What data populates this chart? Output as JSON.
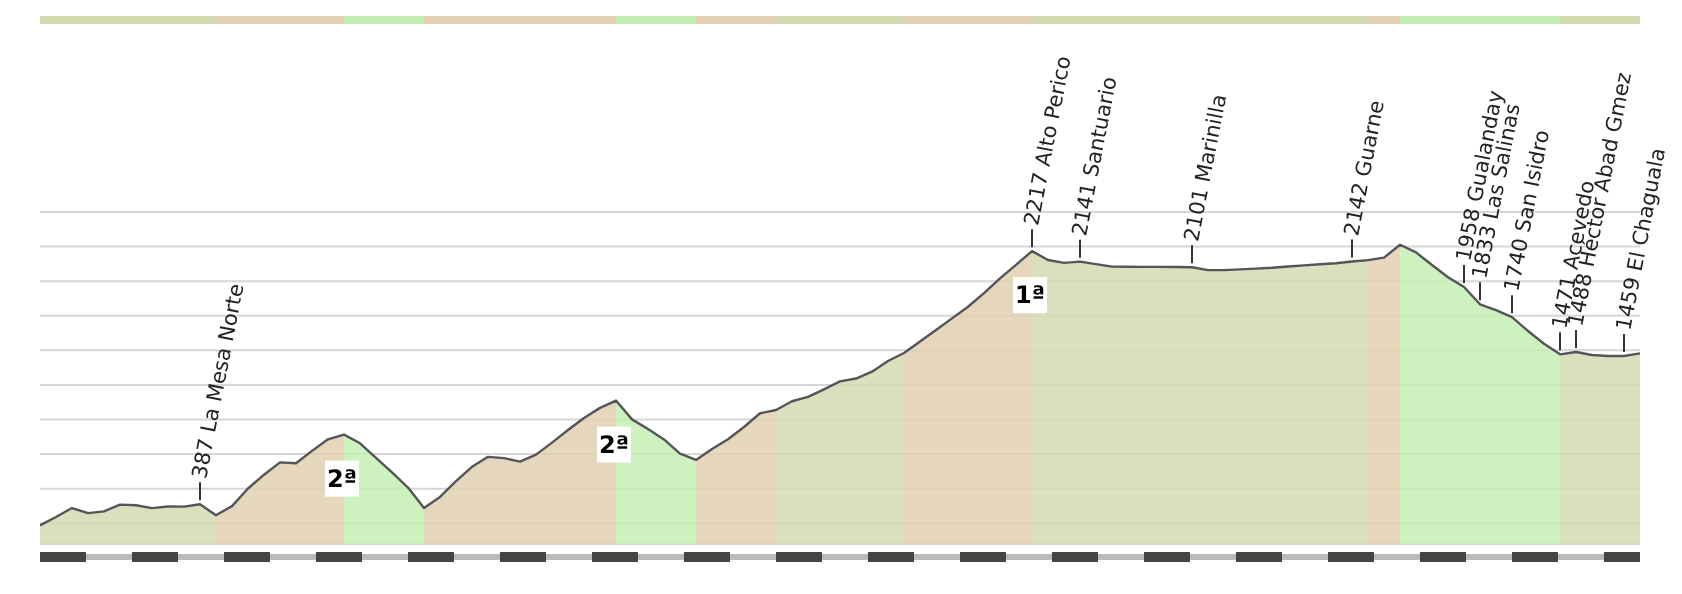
{
  "chart_data": {
    "type": "area",
    "categories": [
      null,
      null,
      null,
      null,
      null,
      null,
      null,
      null,
      null,
      null,
      null,
      null,
      null,
      null,
      null,
      null,
      null,
      null,
      null,
      null,
      null,
      null,
      null,
      null,
      null,
      null,
      null,
      null,
      null,
      null,
      null,
      null,
      null,
      null,
      null,
      null,
      null,
      null,
      null,
      null,
      null,
      null,
      null,
      null,
      null,
      null,
      null,
      null,
      null,
      null,
      null,
      null,
      null,
      null,
      null,
      null,
      null,
      null,
      null,
      null,
      null,
      null,
      null,
      null,
      null,
      null,
      null,
      null,
      null,
      null,
      null,
      null,
      null,
      null,
      null,
      null,
      null,
      null,
      null,
      null,
      null,
      null,
      null,
      null,
      null,
      null,
      null,
      null,
      null,
      null,
      null,
      null,
      null,
      null,
      null,
      null,
      null,
      null,
      null,
      null,
      null
    ],
    "values": [
      235,
      295,
      360,
      323,
      336,
      385,
      380,
      359,
      371,
      370,
      387,
      308,
      374,
      501,
      601,
      690,
      684,
      773,
      857,
      891,
      828,
      722,
      617,
      508,
      361,
      440,
      554,
      658,
      730,
      721,
      696,
      746,
      833,
      924,
      1011,
      1084,
      1137,
      1001,
      932,
      856,
      754,
      708,
      787,
      857,
      946,
      1045,
      1069,
      1132,
      1163,
      1218,
      1276,
      1296,
      1346,
      1423,
      1481,
      1564,
      1647,
      1731,
      1815,
      1914,
      2020,
      2118,
      2217,
      2153,
      2132,
      2141,
      2123,
      2105,
      2104,
      2103,
      2103,
      2102,
      2101,
      2080,
      2080,
      2085,
      2091,
      2097,
      2106,
      2114,
      2122,
      2130,
      2142,
      2152,
      2170,
      2263,
      2208,
      2117,
      2028,
      1958,
      1833,
      1790,
      1740,
      1640,
      1548,
      1471,
      1488,
      1466,
      1459,
      1459,
      1478
    ],
    "value_labels": [
      null,
      null,
      null,
      null,
      null,
      null,
      null,
      null,
      null,
      null,
      "387 La Mesa Norte",
      null,
      null,
      null,
      null,
      null,
      null,
      null,
      null,
      null,
      null,
      null,
      null,
      null,
      null,
      null,
      null,
      null,
      null,
      null,
      null,
      null,
      null,
      null,
      null,
      null,
      null,
      null,
      null,
      null,
      null,
      null,
      null,
      null,
      null,
      null,
      null,
      null,
      null,
      null,
      null,
      null,
      null,
      null,
      null,
      null,
      null,
      null,
      null,
      null,
      null,
      null,
      "2217 Alto Perico",
      null,
      null,
      "2141 Santuario",
      null,
      null,
      null,
      null,
      null,
      null,
      "2101 Marinilla",
      null,
      null,
      null,
      null,
      null,
      null,
      null,
      null,
      null,
      "2142 Guarne",
      null,
      null,
      null,
      null,
      null,
      null,
      "1958 Gualanday",
      "1833 Las Salinas",
      null,
      "1740 San Isidro",
      null,
      null,
      "1471 Acevedo",
      "1488 Héctor Abad Gmez",
      null,
      null,
      "1459 El Chaguala",
      null
    ],
    "color": "#555555",
    "colors": [
      "#d4dbb1",
      "#d4dbb1",
      "#d4dbb1",
      "#d4dbb1",
      "#d4dbb1",
      "#d4dbb1",
      "#d4dbb1",
      "#d4dbb1",
      "#d4dbb1",
      "#d4dbb1",
      "#d4dbb1",
      "#e1d0b1",
      "#e1d0b1",
      "#e1d0b1",
      "#e1d0b1",
      "#e1d0b1",
      "#e1d0b1",
      "#e1d0b1",
      "#e1d0b1",
      "#c4efb4",
      "#c4efb4",
      "#c4efb4",
      "#c4efb4",
      "#c4efb4",
      "#e1d0b1",
      "#e1d0b1",
      "#e1d0b1",
      "#e1d0b1",
      "#e1d0b1",
      "#e1d0b1",
      "#e1d0b1",
      "#e1d0b1",
      "#e1d0b1",
      "#e1d0b1",
      "#e1d0b1",
      "#e1d0b1",
      "#c4efb4",
      "#c4efb4",
      "#c4efb4",
      "#c4efb4",
      "#c4efb4",
      "#e1d0b1",
      "#e1d0b1",
      "#e1d0b1",
      "#e1d0b1",
      "#e1d0b1",
      "#d4dbb1",
      "#d4dbb1",
      "#d4dbb1",
      "#d4dbb1",
      "#d4dbb1",
      "#d4dbb1",
      "#d4dbb1",
      "#d4dbb1",
      "#e1d0b1",
      "#e1d0b1",
      "#e1d0b1",
      "#e1d0b1",
      "#e1d0b1",
      "#e1d0b1",
      "#e1d0b1",
      "#e1d0b1",
      "#d4dbb1",
      "#d4dbb1",
      "#d4dbb1",
      "#d4dbb1",
      "#d4dbb1",
      "#d4dbb1",
      "#d4dbb1",
      "#d4dbb1",
      "#d4dbb1",
      "#d4dbb1",
      "#d4dbb1",
      "#d4dbb1",
      "#d4dbb1",
      "#d4dbb1",
      "#d4dbb1",
      "#d4dbb1",
      "#d4dbb1",
      "#d4dbb1",
      "#d4dbb1",
      "#d4dbb1",
      "#d4dbb1",
      "#e1d0b1",
      "#e1d0b1",
      "#c4efb4",
      "#c4efb4",
      "#c4efb4",
      "#c4efb4",
      "#c4efb4",
      "#c4efb4",
      "#c4efb4",
      "#c4efb4",
      "#c4efb4",
      "#c4efb4",
      "#d4dbb1",
      "#d4dbb1",
      "#d4dbb1",
      "#d4dbb1",
      "#d4dbb1",
      "#d4dbb1"
    ],
    "ylim": [
      100,
      2500
    ],
    "yticks": [
      {
        "value": 250,
        "label": null
      },
      {
        "value": 500,
        "label": null
      },
      {
        "value": 750,
        "label": null
      },
      {
        "value": 1000,
        "label": null
      },
      {
        "value": 1250,
        "label": null
      },
      {
        "value": 1500,
        "label": null
      },
      {
        "value": 1750,
        "label": null
      },
      {
        "value": 2000,
        "label": null
      },
      {
        "value": 2250,
        "label": null
      },
      {
        "value": 2500,
        "label": null
      }
    ],
    "grid": "y",
    "tick_labels": false,
    "annotations": [
      "2ª",
      "2ª",
      "1ª"
    ]
  }
}
